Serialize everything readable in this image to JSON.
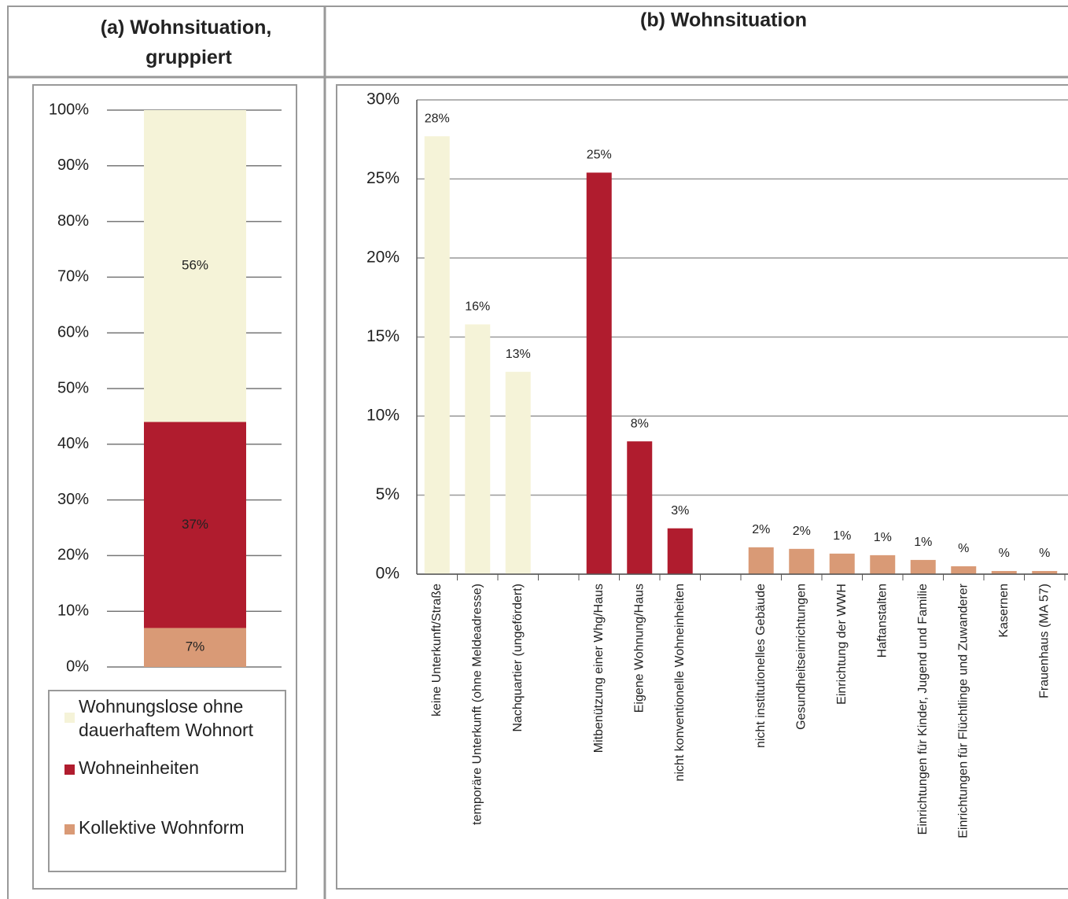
{
  "chart_data": [
    {
      "type": "stacked-bar",
      "title": "(a) Wohnsituation, gruppiert",
      "categories": [
        null
      ],
      "series": [
        {
          "name": "Kollektive Wohnform",
          "color": "#d99a76",
          "values": [
            7
          ],
          "value_labels": [
            "7%"
          ]
        },
        {
          "name": "Wohneinheiten",
          "color": "#b01c2e",
          "values": [
            37
          ],
          "value_labels": [
            "37%"
          ]
        },
        {
          "name": "Wohnungslose ohne dauerhaftem Wohnort",
          "color": "#f5f3d8",
          "values": [
            56
          ],
          "value_labels": [
            "56%"
          ]
        }
      ],
      "ylim": [
        0,
        100
      ],
      "yticks": [
        {
          "value": 0,
          "label": "0%"
        },
        {
          "value": 10,
          "label": "10%"
        },
        {
          "value": 20,
          "label": "20%"
        },
        {
          "value": 30,
          "label": "30%"
        },
        {
          "value": 40,
          "label": "40%"
        },
        {
          "value": 50,
          "label": "50%"
        },
        {
          "value": 60,
          "label": "60%"
        },
        {
          "value": 70,
          "label": "70%"
        },
        {
          "value": 80,
          "label": "80%"
        },
        {
          "value": 90,
          "label": "90%"
        },
        {
          "value": 100,
          "label": "100%"
        }
      ],
      "grid": true
    },
    {
      "type": "bar",
      "title": "(b) Wohnsituation",
      "categories": [
        "keine Unterkunft/Straße",
        "temporäre Unterkunft (ohne Meldeadresse)",
        "Nachquartier (ungefördert)",
        null,
        "Mitbenützung einer Whg/Haus",
        "Eigene Wohnung/Haus",
        "nicht konventionelle Wohneinheiten",
        null,
        "nicht institutionelles Gebäude",
        "Gesundheitseinrichtungen",
        "Einrichtung der WWH",
        "Haftanstalten",
        "Einrichtungen für Kinder, Jugend und Familie",
        "Einrichtungen für Flüchtlinge und Zuwanderer",
        "Kasernen",
        "Frauenhaus (MA 57)"
      ],
      "values": [
        27.7,
        15.8,
        12.8,
        null,
        25.4,
        8.4,
        2.9,
        null,
        1.7,
        1.6,
        1.3,
        1.2,
        0.9,
        0.5,
        0.2,
        0.2
      ],
      "value_labels": [
        "28%",
        "16%",
        "13%",
        null,
        "25%",
        "8%",
        "3%",
        null,
        "2%",
        "2%",
        "1%",
        "1%",
        "1%",
        "%",
        "%",
        "%"
      ],
      "colors": [
        "#f5f3d8",
        "#f5f3d8",
        "#f5f3d8",
        null,
        "#b01c2e",
        "#b01c2e",
        "#b01c2e",
        null,
        "#d99a76",
        "#d99a76",
        "#d99a76",
        "#d99a76",
        "#d99a76",
        "#d99a76",
        "#d99a76",
        "#d99a76"
      ],
      "ylim": [
        0,
        30
      ],
      "yticks": [
        {
          "value": 0,
          "label": "0%"
        },
        {
          "value": 5,
          "label": "5%"
        },
        {
          "value": 10,
          "label": "10%"
        },
        {
          "value": 15,
          "label": "15%"
        },
        {
          "value": 20,
          "label": "20%"
        },
        {
          "value": 25,
          "label": "25%"
        },
        {
          "value": 30,
          "label": "30%"
        }
      ],
      "grid": true
    }
  ]
}
